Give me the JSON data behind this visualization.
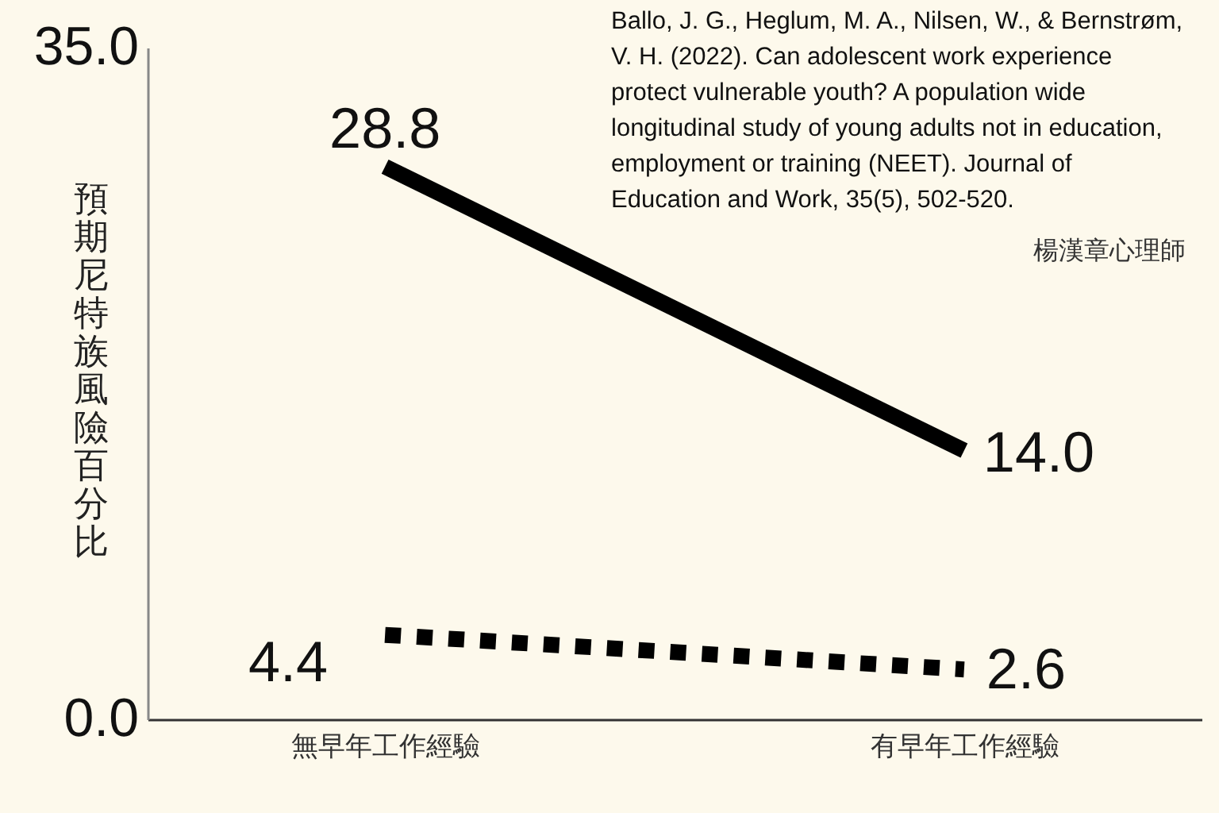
{
  "chart_data": {
    "type": "line",
    "ylabel": "預期尼特族風險百分比",
    "categories": [
      "無早年工作經驗",
      "有早年工作經驗"
    ],
    "series": [
      {
        "color": "#000000",
        "line_style": "solid",
        "values": [
          28.8,
          14.0
        ],
        "value_labels": [
          "28.8",
          "14.0"
        ]
      },
      {
        "color": "#000000",
        "line_style": "dotted",
        "values": [
          4.4,
          2.6
        ],
        "value_labels": [
          "4.4",
          "2.6"
        ]
      }
    ],
    "ylim": [
      0,
      35
    ],
    "yticks": [
      {
        "value": 0,
        "label": "0.0"
      },
      {
        "value": 35,
        "label": "35.0"
      }
    ],
    "grid": false,
    "annotations": [
      "Ballo, J. G., Heglum, M. A., Nilsen, W., & Bernstrøm,\nV. H. (2022). Can adolescent work experience\nprotect vulnerable youth? A population wide\nlongitudinal study of young adults not in education,\nemployment or training (NEET). Journal of\nEducation and Work, 35(5), 502-520.",
      "楊漢章心理師"
    ]
  }
}
